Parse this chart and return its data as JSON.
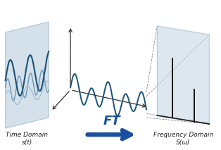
{
  "bg_color": "#ffffff",
  "panel_color_left": "#b8ccdd",
  "panel_color_right": "#c2d5e5",
  "panel_edge": "#8aaabb",
  "wave_dark": "#1a5276",
  "wave_mid": "#6a9ab5",
  "wave_light": "#9abccc",
  "axis_color": "#333333",
  "arrow_color": "#1a4fa0",
  "spike_color": "#111111",
  "dash_color": "#888888",
  "label_left_1": "Time Domain",
  "label_left_2": "s(t)",
  "label_right_1": "Frequency Domain",
  "label_right_2": "S(ω)",
  "label_ft": "FT"
}
